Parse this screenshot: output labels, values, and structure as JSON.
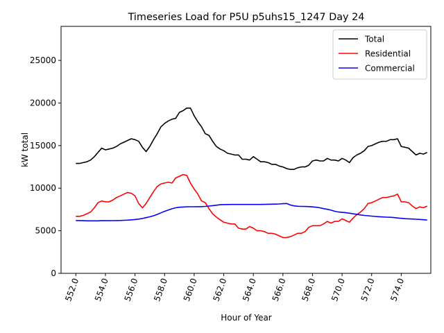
{
  "chart_data": {
    "type": "line",
    "title": "Timeseries Load for P5U p5uhs15_1247  Day 24",
    "xlabel": "Hour of Year",
    "ylabel": "kW total",
    "xlim": [
      551.0,
      576.0
    ],
    "ylim": [
      0,
      29000
    ],
    "x_ticks": [
      552,
      554,
      556,
      558,
      560,
      562,
      564,
      566,
      568,
      570,
      572,
      574
    ],
    "x_tick_labels": [
      "552.0",
      "554.0",
      "556.0",
      "558.0",
      "560.0",
      "562.0",
      "564.0",
      "566.0",
      "568.0",
      "570.0",
      "572.0",
      "574.0"
    ],
    "y_ticks": [
      0,
      5000,
      10000,
      15000,
      20000,
      25000
    ],
    "y_tick_labels": [
      "0",
      "5000",
      "10000",
      "15000",
      "20000",
      "25000"
    ],
    "grid": false,
    "legend_position": "upper-right",
    "x_start": 552.0,
    "x_step": 0.25,
    "series": [
      {
        "name": "Total",
        "color": "#000000",
        "values": [
          12900,
          12900,
          13000,
          13100,
          13300,
          13700,
          14200,
          14700,
          14500,
          14600,
          14700,
          14900,
          15200,
          15400,
          15600,
          15800,
          15700,
          15500,
          14800,
          14300,
          14900,
          15700,
          16400,
          17200,
          17600,
          17900,
          18100,
          18200,
          18900,
          19100,
          19400,
          19400,
          18500,
          17800,
          17200,
          16400,
          16200,
          15500,
          14900,
          14600,
          14400,
          14100,
          14000,
          13900,
          13900,
          13400,
          13400,
          13300,
          13700,
          13400,
          13100,
          13100,
          13000,
          12800,
          12800,
          12600,
          12500,
          12300,
          12200,
          12200,
          12400,
          12500,
          12500,
          12700,
          13200,
          13300,
          13200,
          13200,
          13500,
          13300,
          13300,
          13200,
          13500,
          13300,
          13000,
          13600,
          13900,
          14100,
          14400,
          14900,
          15000,
          15200,
          15400,
          15500,
          15500,
          15700,
          15700,
          15800,
          14900,
          14800,
          14700,
          14300,
          13900,
          14100,
          14000,
          14200
        ]
      },
      {
        "name": "Residential",
        "color": "#ff0000",
        "values": [
          6700,
          6700,
          6800,
          7000,
          7200,
          7700,
          8300,
          8500,
          8400,
          8400,
          8600,
          8900,
          9100,
          9300,
          9500,
          9400,
          9100,
          8200,
          7700,
          8200,
          8900,
          9600,
          10200,
          10500,
          10600,
          10700,
          10600,
          11200,
          11400,
          11600,
          11500,
          10600,
          9900,
          9300,
          8500,
          8300,
          7600,
          7000,
          6600,
          6300,
          6000,
          5900,
          5800,
          5800,
          5300,
          5200,
          5200,
          5500,
          5300,
          5000,
          5000,
          4900,
          4700,
          4700,
          4600,
          4400,
          4200,
          4200,
          4300,
          4500,
          4700,
          4700,
          4900,
          5400,
          5600,
          5600,
          5600,
          5800,
          6100,
          5900,
          6100,
          6100,
          6400,
          6200,
          6000,
          6500,
          6900,
          7200,
          7600,
          8200,
          8300,
          8500,
          8700,
          8900,
          8900,
          9000,
          9100,
          9300,
          8400,
          8400,
          8300,
          7900,
          7600,
          7800,
          7700,
          7900
        ]
      },
      {
        "name": "Commercial",
        "color": "#0000ff",
        "values": [
          6200,
          6200,
          6180,
          6170,
          6170,
          6170,
          6170,
          6180,
          6180,
          6180,
          6190,
          6200,
          6210,
          6230,
          6250,
          6280,
          6320,
          6370,
          6440,
          6540,
          6640,
          6760,
          6920,
          7100,
          7280,
          7440,
          7580,
          7700,
          7760,
          7790,
          7820,
          7820,
          7820,
          7830,
          7840,
          7860,
          7900,
          7950,
          8000,
          8060,
          8070,
          8080,
          8090,
          8090,
          8090,
          8090,
          8090,
          8090,
          8090,
          8090,
          8090,
          8100,
          8110,
          8120,
          8130,
          8150,
          8180,
          8200,
          8020,
          7930,
          7880,
          7860,
          7850,
          7840,
          7800,
          7760,
          7700,
          7600,
          7520,
          7420,
          7290,
          7200,
          7160,
          7120,
          7060,
          6990,
          6930,
          6860,
          6800,
          6760,
          6720,
          6680,
          6650,
          6620,
          6600,
          6580,
          6550,
          6500,
          6460,
          6420,
          6400,
          6380,
          6350,
          6330,
          6300,
          6260
        ]
      }
    ]
  }
}
